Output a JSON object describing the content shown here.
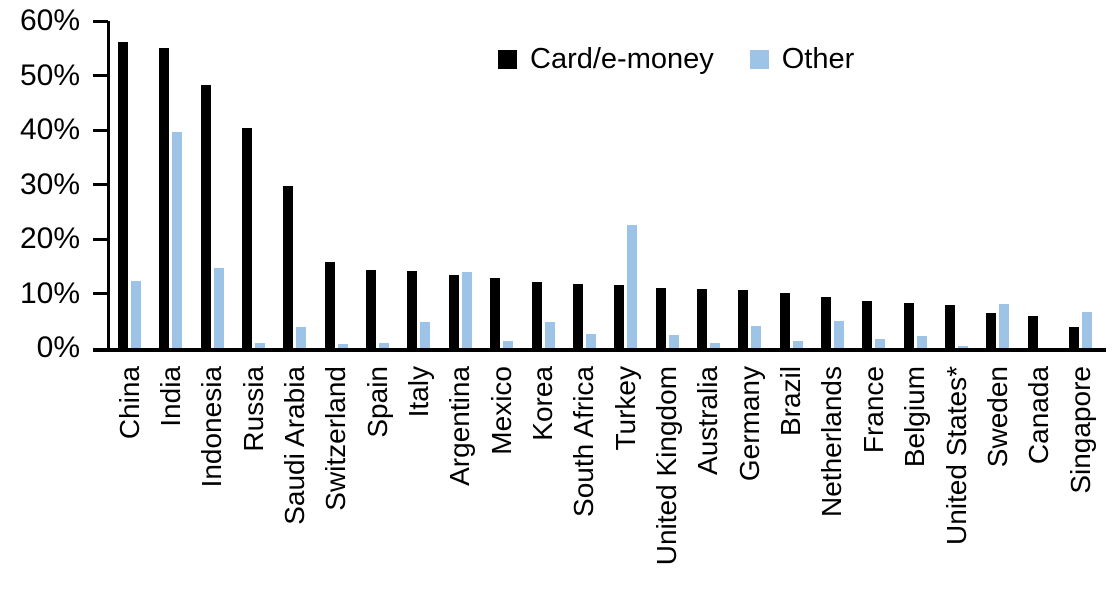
{
  "chart_data": {
    "type": "bar",
    "title": "",
    "categories": [
      "China",
      "India",
      "Indonesia",
      "Russia",
      "Saudi Arabia",
      "Switzerland",
      "Spain",
      "Italy",
      "Argentina",
      "Mexico",
      "Korea",
      "South Africa",
      "Turkey",
      "United Kingdom",
      "Australia",
      "Germany",
      "Brazil",
      "Netherlands",
      "France",
      "Belgium",
      "United States*",
      "Sweden",
      "Canada",
      "Singapore"
    ],
    "series": [
      {
        "name": "Card/e-money",
        "color": "#000000",
        "values": [
          56.1,
          55.0,
          48.2,
          40.4,
          29.8,
          15.7,
          14.3,
          14.2,
          13.4,
          12.9,
          12.2,
          11.7,
          11.5,
          11.0,
          10.8,
          10.6,
          10.0,
          9.3,
          8.7,
          8.2,
          7.9,
          6.5,
          5.9,
          3.8
        ]
      },
      {
        "name": "Other",
        "color": "#9DC3E6",
        "values": [
          12.3,
          39.7,
          14.6,
          1.0,
          3.9,
          0.8,
          1.0,
          4.7,
          13.9,
          1.3,
          4.7,
          2.5,
          22.5,
          2.4,
          1.0,
          4.0,
          1.2,
          4.9,
          1.6,
          2.2,
          0.4,
          8.0,
          0,
          6.6
        ]
      }
    ],
    "xlabel": "",
    "ylabel": "",
    "ylim": [
      0,
      60
    ],
    "yticks": {
      "values": [
        0,
        10,
        20,
        30,
        40,
        50,
        60
      ],
      "labels": [
        "0%",
        "10%",
        "20%",
        "30%",
        "40%",
        "50%",
        "60%"
      ]
    },
    "grid": false,
    "legend_position": "top-center",
    "axis_color": "#000000",
    "background": "#FFFFFF"
  }
}
